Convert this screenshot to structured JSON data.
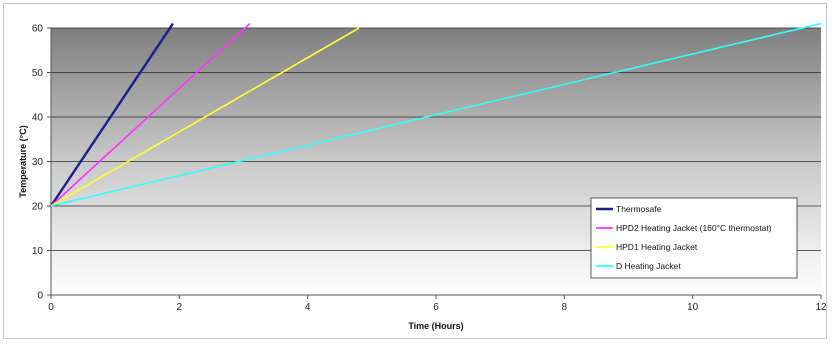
{
  "chart_data": {
    "type": "line",
    "title": "",
    "xlabel": "Time (Hours)",
    "ylabel": "Temperature (°C)",
    "xlim": [
      0,
      12
    ],
    "ylim": [
      0,
      60
    ],
    "xticks": [
      0,
      2,
      4,
      6,
      8,
      10,
      12
    ],
    "yticks": [
      0,
      10,
      20,
      30,
      40,
      50,
      60
    ],
    "grid": "horizontal",
    "legend_position": "bottom-right",
    "series": [
      {
        "name": "Thermosafe",
        "color": "#1a1f8c",
        "x": [
          0,
          1.9
        ],
        "y": [
          20,
          61
        ]
      },
      {
        "name": "HPD2 Heating Jacket (160°C thermostat)",
        "color": "#ff33ff",
        "x": [
          0,
          3.1
        ],
        "y": [
          20,
          61
        ]
      },
      {
        "name": "HPD1 Heating Jacket",
        "color": "#ffff33",
        "x": [
          0,
          4.8
        ],
        "y": [
          20,
          60
        ]
      },
      {
        "name": "D Heating Jacket",
        "color": "#33ffff",
        "x": [
          0,
          12
        ],
        "y": [
          20,
          61
        ]
      }
    ]
  }
}
